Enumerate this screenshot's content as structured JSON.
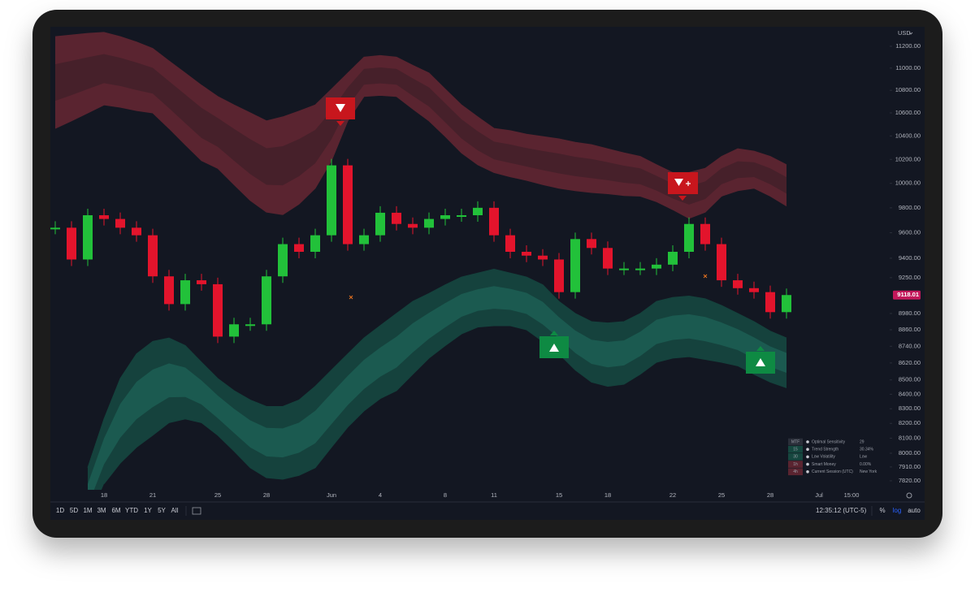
{
  "chart_data": {
    "type": "candlestick",
    "currency": "USD",
    "log_scale": true,
    "up_color": "#22c13a",
    "down_color": "#e3142c",
    "categories": [
      null,
      null,
      null,
      "18",
      null,
      null,
      "21",
      null,
      null,
      null,
      "25",
      null,
      null,
      "28",
      null,
      null,
      null,
      "Jun",
      null,
      null,
      "4",
      null,
      null,
      null,
      "8",
      null,
      null,
      "11",
      null,
      null,
      null,
      "15",
      null,
      null,
      "18",
      null,
      null,
      null,
      "22",
      null,
      null,
      "25",
      null,
      null,
      "28",
      null,
      null,
      "Jul",
      null,
      "15:00"
    ],
    "values": [
      9640,
      9390,
      9740,
      9710,
      9640,
      9580,
      9260,
      9050,
      9230,
      9200,
      8810,
      8900,
      8900,
      9260,
      9510,
      9450,
      9580,
      10150,
      9510,
      9580,
      9760,
      9670,
      9640,
      9710,
      9740,
      9740,
      9800,
      9580,
      9450,
      9420,
      9390,
      9140,
      9550,
      9480,
      9320,
      9320,
      9320,
      9350,
      9450,
      9670,
      9510,
      9230,
      9170,
      9140,
      8990,
      9118.01,
      null,
      null,
      null,
      null
    ],
    "last_price": 9118.01,
    "bands": [
      {
        "color": "#5a2430",
        "inner_color": "#46202a",
        "upper": [
          11290,
          11305,
          11320,
          11330,
          11290,
          11240,
          11180,
          11065,
          10955,
          10845,
          10745,
          10670,
          10600,
          10530,
          10565,
          10615,
          10670,
          10810,
          10955,
          11100,
          11115,
          11100,
          11025,
          10955,
          10810,
          10670,
          10565,
          10465,
          10445,
          10415,
          10395,
          10375,
          10345,
          10325,
          10290,
          10255,
          10225,
          10155,
          10090,
          10090,
          10125,
          10225,
          10290,
          10270,
          10225,
          10155,
          null,
          null,
          null,
          null
        ],
        "lower": [
          10465,
          10530,
          10600,
          10670,
          10650,
          10620,
          10600,
          10465,
          10325,
          10190,
          10125,
          9990,
          9860,
          9765,
          9745,
          9830,
          9960,
          10190,
          10530,
          10745,
          10755,
          10745,
          10635,
          10530,
          10395,
          10255,
          10155,
          10090,
          10055,
          10025,
          9990,
          9960,
          9940,
          9925,
          9915,
          9900,
          9895,
          9850,
          9785,
          9715,
          9765,
          9895,
          9940,
          9960,
          9895,
          9815,
          null,
          null,
          null,
          null
        ]
      },
      {
        "color": "#15423d",
        "inner_color": "#1b5a50",
        "upper": [
          null,
          null,
          7905,
          8230,
          8510,
          8685,
          8775,
          8800,
          8745,
          8625,
          8510,
          8425,
          8360,
          8315,
          8315,
          8360,
          8455,
          8570,
          8685,
          8800,
          8890,
          8980,
          9070,
          9130,
          9195,
          9255,
          9285,
          9315,
          9285,
          9255,
          9195,
          9070,
          8980,
          8920,
          8910,
          8920,
          8980,
          9070,
          9100,
          9110,
          9090,
          9040,
          8980,
          8920,
          8850,
          8800,
          null,
          null,
          null,
          null
        ],
        "lower": [
          null,
          null,
          null,
          7800,
          7935,
          8040,
          8120,
          8205,
          8230,
          8205,
          8120,
          8015,
          7905,
          7840,
          7830,
          7855,
          7905,
          8040,
          8175,
          8285,
          8370,
          8425,
          8540,
          8655,
          8745,
          8830,
          8880,
          8890,
          8890,
          8860,
          8775,
          8685,
          8570,
          8485,
          8455,
          8470,
          8540,
          8625,
          8655,
          8665,
          8645,
          8625,
          8600,
          8540,
          8485,
          8445,
          null,
          null,
          null,
          null
        ]
      }
    ],
    "ylim": [
      7762,
      11382
    ],
    "yticks": [
      {
        "value": 11200,
        "label": "11200.00"
      },
      {
        "value": 11000,
        "label": "11000.00"
      },
      {
        "value": 10800,
        "label": "10800.00"
      },
      {
        "value": 10600,
        "label": "10600.00"
      },
      {
        "value": 10400,
        "label": "10400.00"
      },
      {
        "value": 10200,
        "label": "10200.00"
      },
      {
        "value": 10000,
        "label": "10000.00"
      },
      {
        "value": 9800,
        "label": "9800.00"
      },
      {
        "value": 9600,
        "label": "9600.00"
      },
      {
        "value": 9400,
        "label": "9400.00"
      },
      {
        "value": 9250,
        "label": "9250.00"
      },
      {
        "value": 8980,
        "label": "8980.00"
      },
      {
        "value": 8860,
        "label": "8860.00"
      },
      {
        "value": 8740,
        "label": "8740.00"
      },
      {
        "value": 8620,
        "label": "8620.00"
      },
      {
        "value": 8500,
        "label": "8500.00"
      },
      {
        "value": 8400,
        "label": "8400.00"
      },
      {
        "value": 8300,
        "label": "8300.00"
      },
      {
        "value": 8200,
        "label": "8200.00"
      },
      {
        "value": 8100,
        "label": "8100.00"
      },
      {
        "value": 8000,
        "label": "8000.00"
      },
      {
        "value": 7910,
        "label": "7910.00"
      },
      {
        "value": 7820,
        "label": "7820.00"
      }
    ]
  },
  "info_table": {
    "rows": [
      [
        "MTF",
        "Optimal Sensitivity",
        "29"
      ],
      [
        "15",
        "Trend Strength",
        "30.34%"
      ],
      [
        "30",
        "Low Volatility",
        "Low"
      ],
      [
        "1h",
        "Smart Money",
        "0.00%"
      ],
      [
        "4h",
        "Current Session (UTC)",
        "New York"
      ]
    ]
  },
  "toolbar": {
    "ranges": [
      "1D",
      "5D",
      "1M",
      "3M",
      "6M",
      "YTD",
      "1Y",
      "5Y",
      "All"
    ],
    "clock": "12:35:12 (UTC-5)",
    "scale_modes": [
      {
        "label": "%",
        "active": false
      },
      {
        "label": "log",
        "active": true
      },
      {
        "label": "auto",
        "active": false
      }
    ]
  }
}
